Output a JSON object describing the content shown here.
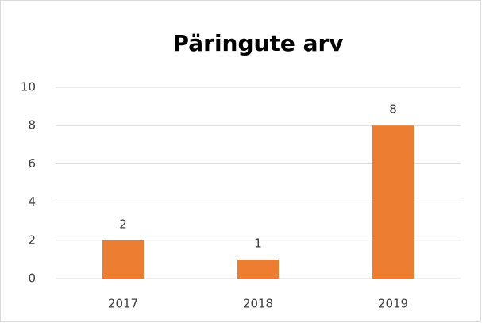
{
  "chart_data": {
    "type": "bar",
    "title": "Päringute arv",
    "categories": [
      "2017",
      "2018",
      "2019"
    ],
    "values": [
      2,
      1,
      8
    ],
    "color": "#ed7d31",
    "ylim": [
      0,
      10
    ],
    "yticks": [
      0,
      2,
      4,
      6,
      8,
      10
    ],
    "grid": true,
    "data_labels": true
  }
}
